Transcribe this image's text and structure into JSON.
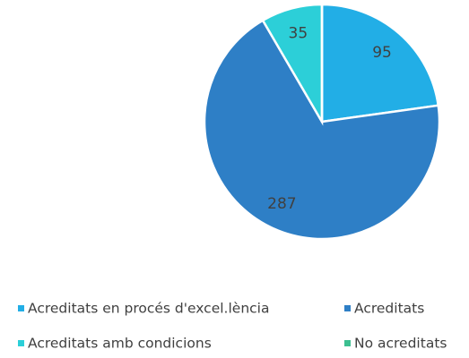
{
  "chart_data": {
    "type": "pie",
    "categories": [
      "Acreditats en procés d'excel.lència",
      "Acreditats",
      "Acreditats amb condicions",
      "No acreditats"
    ],
    "values": [
      95,
      287,
      35,
      0
    ],
    "colors": [
      "#22aee6",
      "#2e7fc6",
      "#2ccfd8",
      "#3cbf90"
    ],
    "legend": "bottom"
  }
}
